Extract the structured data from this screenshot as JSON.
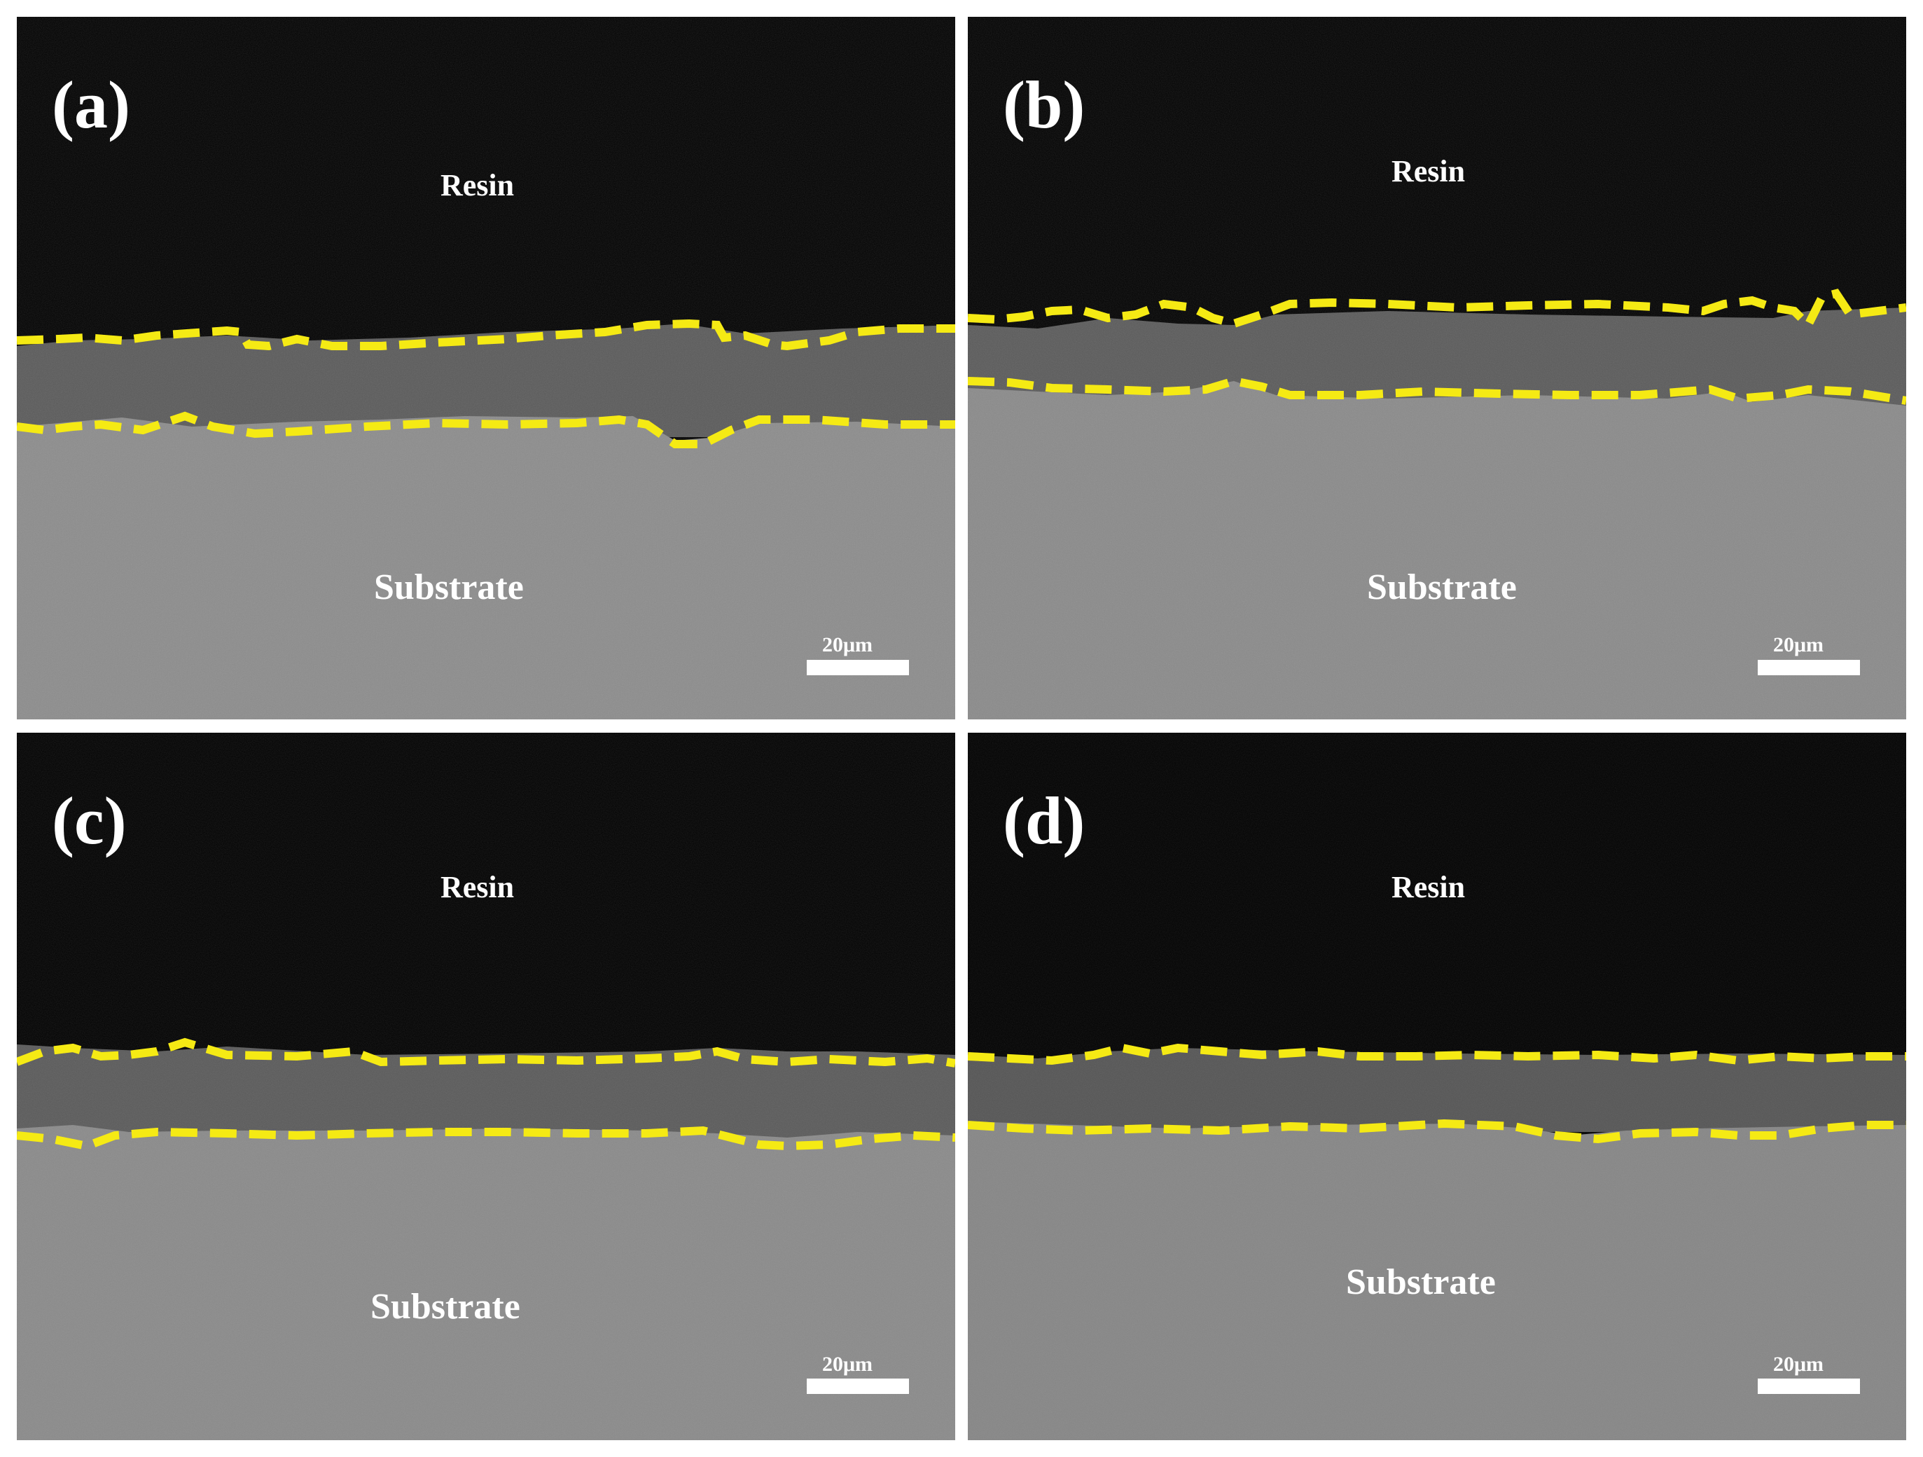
{
  "panels": [
    {
      "id": "a",
      "letter": "(a)",
      "top_label": "Resin",
      "bottom_label": "Substrate",
      "scale_label": "20μm"
    },
    {
      "id": "b",
      "letter": "(b)",
      "top_label": "Resin",
      "bottom_label": "Substrate",
      "scale_label": "20μm"
    },
    {
      "id": "c",
      "letter": "(c)",
      "top_label": "Resin",
      "bottom_label": "Substrate",
      "scale_label": "20μm"
    },
    {
      "id": "d",
      "letter": "(d)",
      "top_label": "Resin",
      "bottom_label": "Substrate",
      "scale_label": "20μm"
    }
  ],
  "colors": {
    "boundary_line": "#f5ea14",
    "resin": "#000000",
    "coating": "#555555",
    "substrate": "#8a8a8a",
    "divider": "#ffffff"
  }
}
